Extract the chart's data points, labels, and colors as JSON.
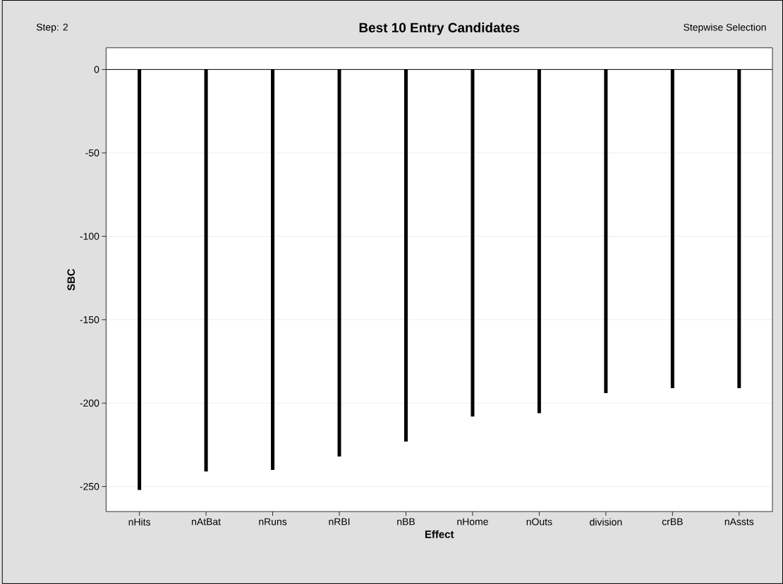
{
  "chart_data": {
    "type": "bar",
    "title": "Best 10 Entry Candidates",
    "xlabel": "Effect",
    "ylabel": "SBC",
    "annotations": [
      "Step:  2",
      "Stepwise  Selection"
    ],
    "categories": [
      "nHits",
      "nAtBat",
      "nRuns",
      "nRBI",
      "nBB",
      "nHome",
      "nOuts",
      "division",
      "crBB",
      "nAssts"
    ],
    "values": [
      -252,
      -241,
      -240,
      -232,
      -223,
      -208,
      -206,
      -194,
      -191,
      -191
    ],
    "color": "#000000",
    "ylim": [
      -265,
      13
    ],
    "yticks": [
      0,
      -50,
      -100,
      -150,
      -200,
      -250
    ],
    "grid": "y",
    "ref_lines": [
      {
        "axis": "y",
        "value": 0,
        "color": "#000000"
      }
    ]
  }
}
